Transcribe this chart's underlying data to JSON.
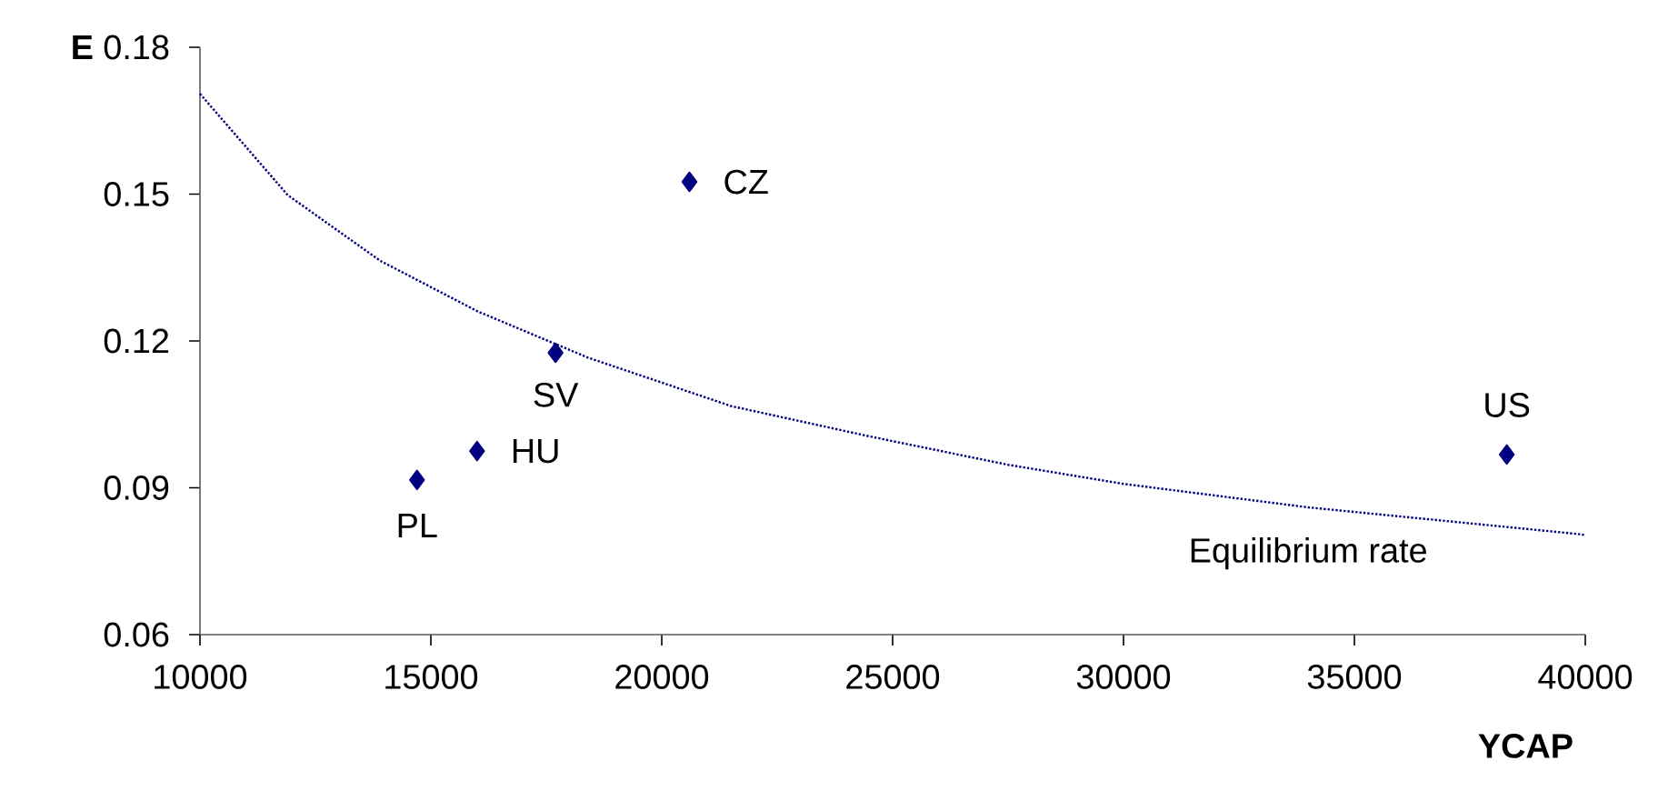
{
  "chart_data": {
    "type": "scatter",
    "xlabel": "YCAP",
    "ylabel": "E",
    "xlim": [
      10000,
      40000
    ],
    "xticks": [
      10000,
      15000,
      20000,
      25000,
      30000,
      35000,
      40000
    ],
    "ylim": [
      0.06,
      0.18
    ],
    "yticks": [
      0.06,
      0.09,
      0.12,
      0.15,
      0.18
    ],
    "marker": "diamond",
    "series": [
      {
        "color": "#000080",
        "x": [
          14700,
          16000,
          17700,
          20600,
          38300
        ],
        "values": [
          0.0916,
          0.0975,
          0.1176,
          0.1525,
          0.0968
        ]
      },
      {
        "type": "line",
        "name": "Equilibrium rate",
        "color": "#000080",
        "line_style": "dotted",
        "marker": "none",
        "x": [
          10000,
          11900,
          13900,
          16000,
          18400,
          21000,
          21500,
          24500,
          27500,
          30000,
          34000,
          39900,
          40000
        ],
        "values": [
          0.1705,
          0.1498,
          0.1364,
          0.1261,
          0.1166,
          0.1083,
          0.1067,
          0.1005,
          0.0947,
          0.0908,
          0.086,
          0.0805,
          0.0803
        ]
      }
    ],
    "annotations": [
      {
        "text": "PL",
        "x": 14700,
        "y": 0.0916
      },
      {
        "text": "HU",
        "x": 16000,
        "y": 0.0975
      },
      {
        "text": "SV",
        "x": 17700,
        "y": 0.1176
      },
      {
        "text": "CZ",
        "x": 20600,
        "y": 0.1525
      },
      {
        "text": "US",
        "x": 38300,
        "y": 0.0968
      }
    ]
  }
}
